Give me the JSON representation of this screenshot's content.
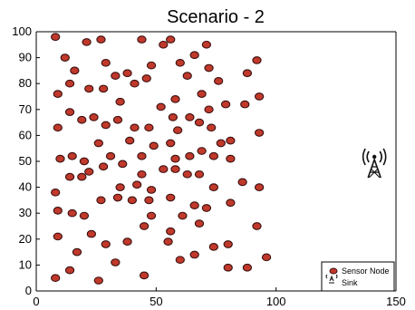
{
  "chart_data": {
    "type": "scatter",
    "title": "Scenario - 2",
    "xlabel": "",
    "ylabel": "",
    "xlim": [
      0,
      150
    ],
    "ylim": [
      0,
      100
    ],
    "xticks": [
      0,
      50,
      100,
      150
    ],
    "yticks": [
      0,
      10,
      20,
      30,
      40,
      50,
      60,
      70,
      80,
      90,
      100
    ],
    "grid": false,
    "legend_position": "bottom-right",
    "colors": {
      "node_fill": "#c0392b",
      "node_edge": "#3a1010",
      "sink": "#111111",
      "axis": "#000000"
    },
    "series": [
      {
        "name": "Sensor Node",
        "points": [
          [
            8,
            98
          ],
          [
            12,
            90
          ],
          [
            16,
            85
          ],
          [
            21,
            96
          ],
          [
            27,
            97
          ],
          [
            29,
            88
          ],
          [
            33,
            83
          ],
          [
            38,
            84
          ],
          [
            44,
            97
          ],
          [
            48,
            87
          ],
          [
            53,
            95
          ],
          [
            56,
            97
          ],
          [
            60,
            88
          ],
          [
            66,
            91
          ],
          [
            71,
            95
          ],
          [
            72,
            86
          ],
          [
            76,
            81
          ],
          [
            88,
            84
          ],
          [
            92,
            89
          ],
          [
            9,
            76
          ],
          [
            14,
            80
          ],
          [
            22,
            78
          ],
          [
            28,
            78
          ],
          [
            35,
            73
          ],
          [
            41,
            80
          ],
          [
            46,
            82
          ],
          [
            52,
            71
          ],
          [
            58,
            74
          ],
          [
            63,
            83
          ],
          [
            69,
            76
          ],
          [
            72,
            70
          ],
          [
            79,
            72
          ],
          [
            87,
            72
          ],
          [
            93,
            75
          ],
          [
            9,
            63
          ],
          [
            14,
            69
          ],
          [
            19,
            66
          ],
          [
            24,
            67
          ],
          [
            29,
            64
          ],
          [
            34,
            66
          ],
          [
            41,
            63
          ],
          [
            47,
            63
          ],
          [
            57,
            67
          ],
          [
            59,
            62
          ],
          [
            64,
            67
          ],
          [
            68,
            65
          ],
          [
            73,
            63
          ],
          [
            77,
            57
          ],
          [
            81,
            58
          ],
          [
            93,
            61
          ],
          [
            10,
            51
          ],
          [
            15,
            52
          ],
          [
            20,
            50
          ],
          [
            26,
            57
          ],
          [
            31,
            52
          ],
          [
            36,
            49
          ],
          [
            39,
            58
          ],
          [
            44,
            52
          ],
          [
            49,
            56
          ],
          [
            56,
            57
          ],
          [
            58,
            51
          ],
          [
            64,
            52
          ],
          [
            69,
            54
          ],
          [
            74,
            52
          ],
          [
            81,
            51
          ],
          [
            8,
            38
          ],
          [
            14,
            44
          ],
          [
            19,
            44
          ],
          [
            22,
            46
          ],
          [
            28,
            48
          ],
          [
            35,
            40
          ],
          [
            42,
            41
          ],
          [
            44,
            45
          ],
          [
            48,
            39
          ],
          [
            53,
            47
          ],
          [
            58,
            47
          ],
          [
            63,
            45
          ],
          [
            68,
            45
          ],
          [
            74,
            40
          ],
          [
            86,
            42
          ],
          [
            93,
            40
          ],
          [
            9,
            31
          ],
          [
            15,
            30
          ],
          [
            20,
            29
          ],
          [
            27,
            35
          ],
          [
            34,
            36
          ],
          [
            40,
            35
          ],
          [
            47,
            35
          ],
          [
            56,
            36
          ],
          [
            61,
            29
          ],
          [
            66,
            33
          ],
          [
            71,
            32
          ],
          [
            81,
            34
          ],
          [
            9,
            21
          ],
          [
            17,
            15
          ],
          [
            23,
            22
          ],
          [
            29,
            18
          ],
          [
            38,
            19
          ],
          [
            45,
            25
          ],
          [
            48,
            29
          ],
          [
            56,
            23
          ],
          [
            60,
            12
          ],
          [
            68,
            26
          ],
          [
            80,
            18
          ],
          [
            92,
            25
          ],
          [
            8,
            5
          ],
          [
            14,
            8
          ],
          [
            26,
            4
          ],
          [
            33,
            11
          ],
          [
            45,
            6
          ],
          [
            55,
            19
          ],
          [
            66,
            14
          ],
          [
            74,
            17
          ],
          [
            80,
            9
          ],
          [
            88,
            9
          ],
          [
            96,
            13
          ]
        ]
      },
      {
        "name": "Sink",
        "points": [
          [
            141,
            50
          ]
        ]
      }
    ]
  }
}
